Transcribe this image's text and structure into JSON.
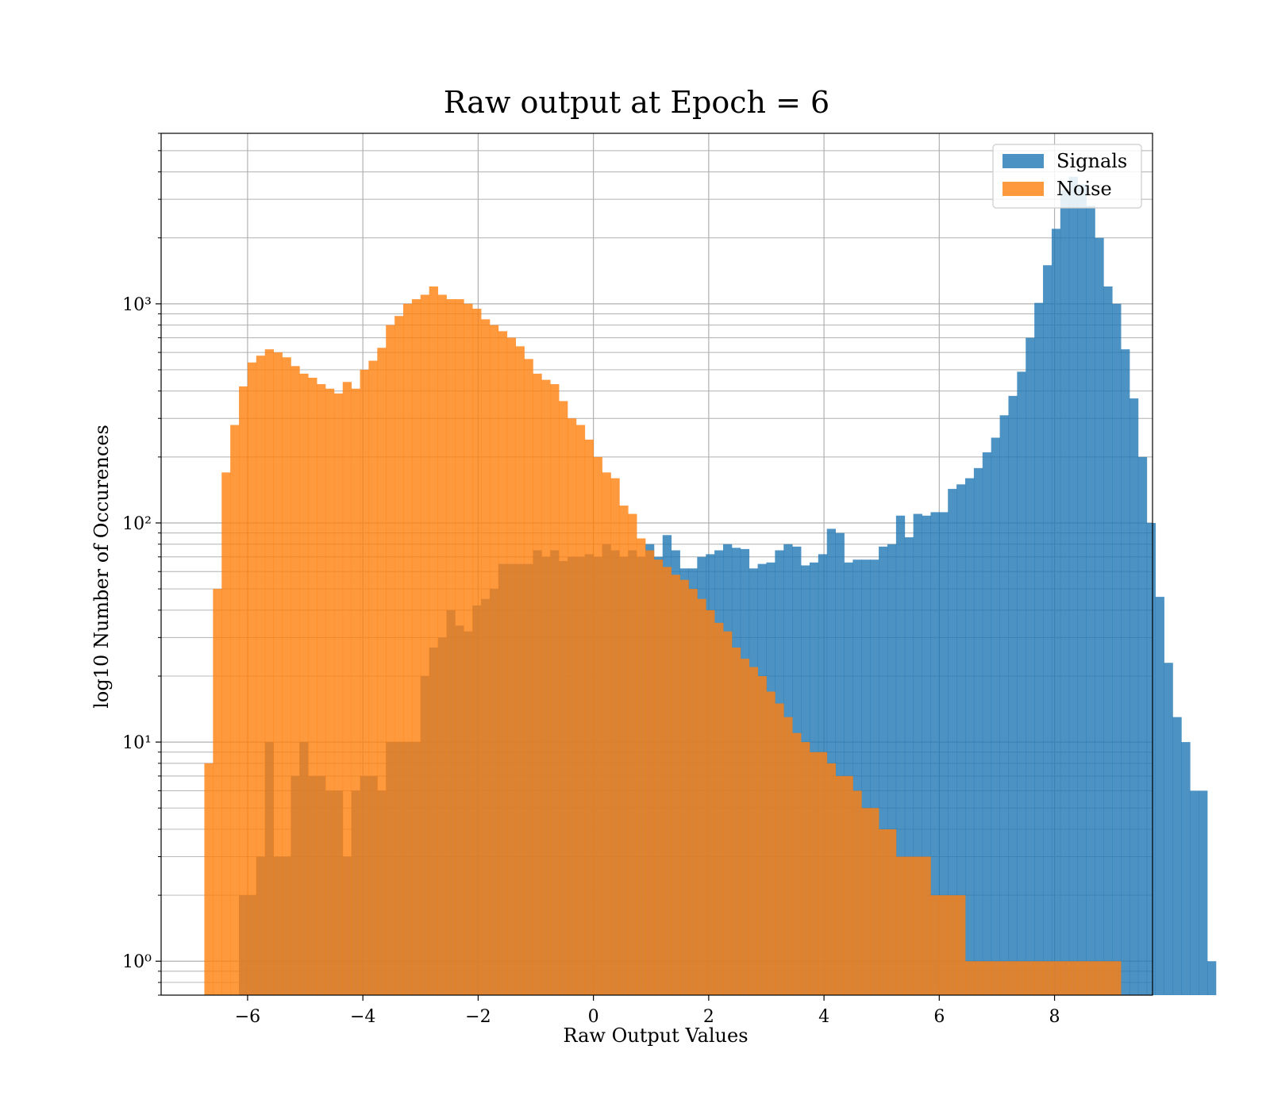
{
  "chart_data": {
    "type": "bar",
    "title": "Raw output at Epoch = 6",
    "xlabel": "Raw Output Values",
    "ylabel": "log10 Number of Occurences",
    "xlim": [
      -7.5,
      9.7
    ],
    "ylim": [
      0.7,
      6000
    ],
    "yscale": "log",
    "grid": true,
    "grid_minor_y": true,
    "legend_position": "top-right",
    "xticks": [
      -6,
      -4,
      -2,
      0,
      2,
      4,
      6,
      8
    ],
    "xtick_labels": [
      "−6",
      "−4",
      "−2",
      "0",
      "2",
      "4",
      "6",
      "8"
    ],
    "yticks": [
      1,
      10,
      100,
      1000
    ],
    "ytick_labels": [
      "10⁰",
      "10¹",
      "10²",
      "10³"
    ],
    "series": [
      {
        "name": "Signals",
        "color": "#1f77b4",
        "opacity": 0.8,
        "bins": {
          "start": -6.15,
          "width": 0.15,
          "values": [
            2,
            2,
            3,
            10,
            3,
            3,
            7,
            10,
            7,
            7,
            6,
            6,
            3,
            6,
            7,
            7,
            6,
            10,
            10,
            10,
            10,
            20,
            27,
            30,
            40,
            34,
            32,
            42,
            45,
            50,
            65,
            65,
            65,
            65,
            75,
            70,
            75,
            67,
            70,
            70,
            72,
            70,
            80,
            75,
            70,
            75,
            70,
            80,
            70,
            88,
            75,
            62,
            62,
            70,
            72,
            75,
            80,
            77,
            76,
            62,
            65,
            66,
            75,
            80,
            78,
            64,
            66,
            72,
            94,
            90,
            66,
            68,
            68,
            68,
            78,
            80,
            108,
            86,
            110,
            108,
            112,
            112,
            143,
            150,
            160,
            178,
            210,
            245,
            310,
            380,
            490,
            700,
            1010,
            1500,
            2200,
            3300,
            3800,
            3500,
            2800,
            2000,
            1200,
            1000,
            620,
            370,
            200,
            100,
            46,
            23,
            13,
            10,
            6,
            6,
            1
          ]
        }
      },
      {
        "name": "Noise",
        "color": "#ff7f0e",
        "opacity": 0.8,
        "bins": {
          "start": -6.75,
          "width": 0.15,
          "values": [
            8,
            50,
            170,
            280,
            420,
            540,
            580,
            620,
            600,
            570,
            520,
            480,
            460,
            430,
            410,
            390,
            440,
            410,
            500,
            550,
            630,
            800,
            880,
            1000,
            1050,
            1100,
            1200,
            1100,
            1050,
            1050,
            1000,
            950,
            850,
            800,
            750,
            700,
            640,
            560,
            480,
            450,
            430,
            360,
            300,
            280,
            240,
            200,
            170,
            160,
            120,
            110,
            85,
            75,
            68,
            63,
            58,
            55,
            50,
            45,
            40,
            35,
            32,
            27,
            24,
            22,
            20,
            17,
            15,
            13,
            11,
            10,
            9,
            9,
            8,
            7,
            7,
            6,
            5,
            5,
            4,
            4,
            3,
            3,
            3,
            3,
            2,
            2,
            2,
            2,
            1,
            1,
            1,
            1,
            1,
            1,
            1,
            1,
            1,
            1,
            1,
            1,
            1,
            1,
            1,
            1,
            1,
            1
          ]
        }
      }
    ]
  }
}
